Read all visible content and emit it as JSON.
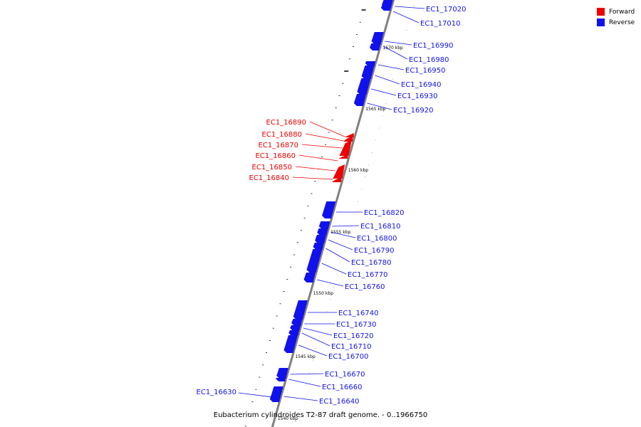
{
  "caption": "Eubacterium cylindroides T2-87 draft genome. - 0..1966750",
  "legend": [
    {
      "label": "Forward",
      "color": "#ee0000"
    },
    {
      "label": "Reverse",
      "color": "#1111ee"
    }
  ],
  "colors": {
    "forward": "#ee0000",
    "reverse": "#1111ee",
    "backbone": "#808080"
  },
  "scale_labels": [
    "1570 kbp",
    "1565 kbp",
    "1560 kbp",
    "1555 kbp",
    "1550 kbp",
    "1545 kbp",
    "1540 kbp"
  ],
  "genes_reverse": [
    "EC1_17020",
    "EC1_17010",
    "EC1_16990",
    "EC1_16980",
    "EC1_16950",
    "EC1_16940",
    "EC1_16930",
    "EC1_16920",
    "EC1_16820",
    "EC1_16810",
    "EC1_16800",
    "EC1_16790",
    "EC1_16780",
    "EC1_16770",
    "EC1_16760",
    "EC1_16740",
    "EC1_16730",
    "EC1_16720",
    "EC1_16710",
    "EC1_16700",
    "EC1_16670",
    "EC1_16660",
    "EC1_16640",
    "EC1_16630"
  ],
  "genes_forward": [
    "EC1_16890",
    "EC1_16880",
    "EC1_16870",
    "EC1_16860",
    "EC1_16850",
    "EC1_16840"
  ]
}
